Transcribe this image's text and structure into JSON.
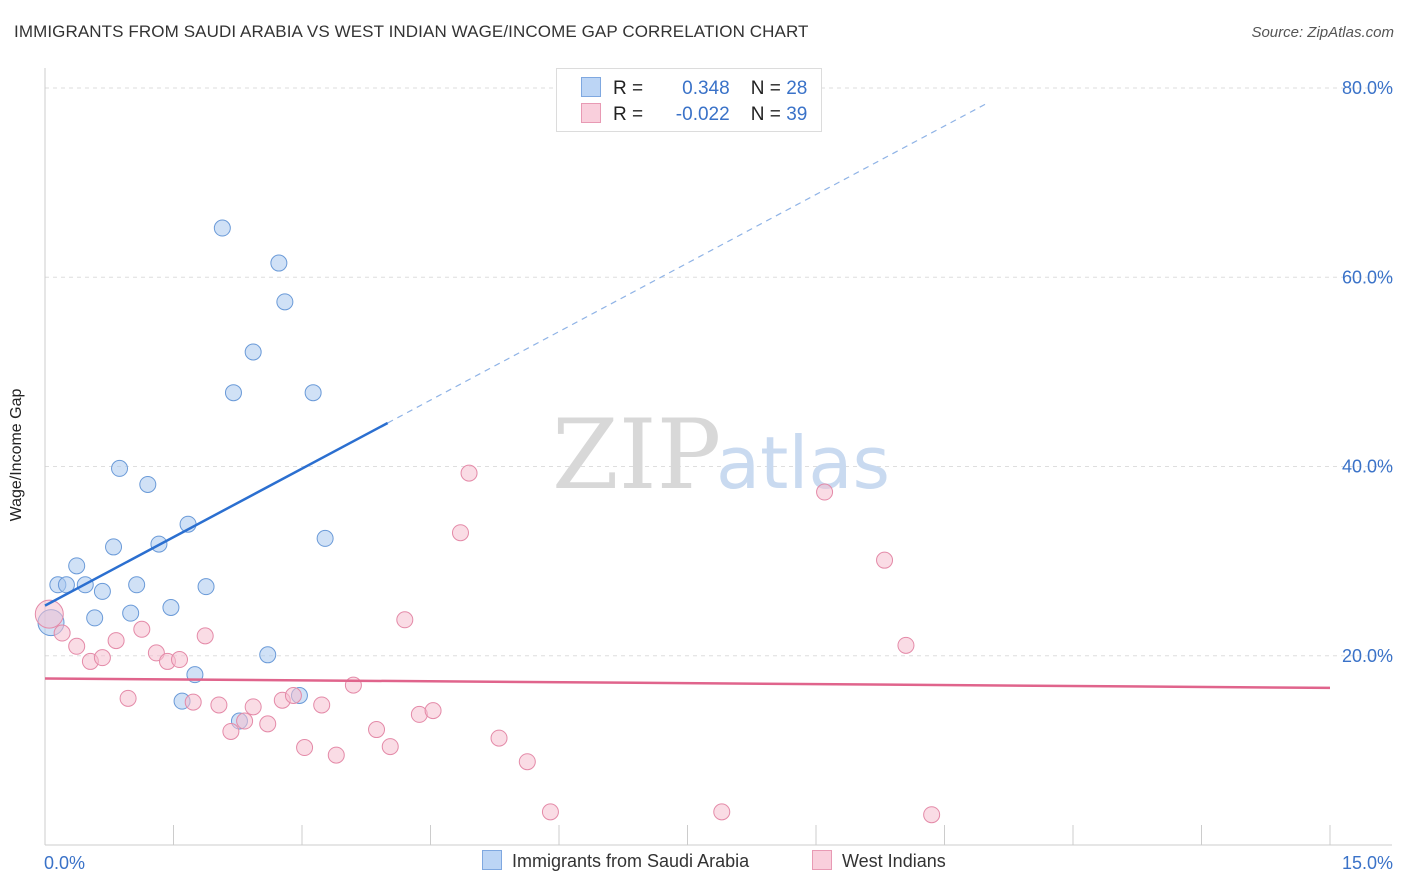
{
  "chart_data": {
    "type": "scatter",
    "title": "IMMIGRANTS FROM SAUDI ARABIA VS WEST INDIAN WAGE/INCOME GAP CORRELATION CHART",
    "source": "Source: ZipAtlas.com",
    "xlabel": "",
    "ylabel": "Wage/Income Gap",
    "xlim": [
      0,
      15
    ],
    "ylim": [
      0,
      80
    ],
    "x_tick_labels": [
      {
        "value": 0,
        "label": "0.0%"
      },
      {
        "value": 15,
        "label": "15.0%"
      }
    ],
    "y_tick_labels": [
      {
        "value": 20,
        "label": "20.0%"
      },
      {
        "value": 40,
        "label": "40.0%"
      },
      {
        "value": 60,
        "label": "60.0%"
      },
      {
        "value": 80,
        "label": "80.0%"
      }
    ],
    "grid": true,
    "legend_position": "top-center",
    "series": [
      {
        "name": "Immigrants from Saudi Arabia",
        "color": "#a9c8ef",
        "stroke": "#6a9ad8",
        "line_color": "#2b6fd0",
        "R": "0.348",
        "N": "28",
        "trend": {
          "x0": 0.0,
          "y0": 25.3,
          "x1": 4.0,
          "y1": 44.6,
          "dash_to_x": 11.0,
          "dash_to_y": 78.4
        },
        "points": [
          [
            0.07,
            23.5
          ],
          [
            0.15,
            27.5
          ],
          [
            0.25,
            27.5
          ],
          [
            0.37,
            29.5
          ],
          [
            0.47,
            27.5
          ],
          [
            0.58,
            24.0
          ],
          [
            0.67,
            26.8
          ],
          [
            0.8,
            31.5
          ],
          [
            0.87,
            39.8
          ],
          [
            1.0,
            24.5
          ],
          [
            1.07,
            27.5
          ],
          [
            1.2,
            38.1
          ],
          [
            1.33,
            31.8
          ],
          [
            1.47,
            25.1
          ],
          [
            1.6,
            15.2
          ],
          [
            1.67,
            33.9
          ],
          [
            1.75,
            18.0
          ],
          [
            1.88,
            27.3
          ],
          [
            2.07,
            65.2
          ],
          [
            2.2,
            47.8
          ],
          [
            2.27,
            13.1
          ],
          [
            2.43,
            52.1
          ],
          [
            2.6,
            20.1
          ],
          [
            2.73,
            61.5
          ],
          [
            2.8,
            57.4
          ],
          [
            2.97,
            15.8
          ],
          [
            3.13,
            47.8
          ],
          [
            3.27,
            32.4
          ]
        ]
      },
      {
        "name": "West Indians",
        "color": "#f6bfd0",
        "stroke": "#e48aa8",
        "line_color": "#e0648c",
        "R": "-0.022",
        "N": "39",
        "trend": {
          "x0": 0.0,
          "y0": 17.6,
          "x1": 15.0,
          "y1": 16.6
        },
        "points": [
          [
            0.05,
            24.4
          ],
          [
            0.2,
            22.4
          ],
          [
            0.37,
            21.0
          ],
          [
            0.53,
            19.4
          ],
          [
            0.67,
            19.8
          ],
          [
            0.83,
            21.6
          ],
          [
            0.97,
            15.5
          ],
          [
            1.13,
            22.8
          ],
          [
            1.3,
            20.3
          ],
          [
            1.43,
            19.4
          ],
          [
            1.57,
            19.6
          ],
          [
            1.73,
            15.1
          ],
          [
            1.87,
            22.1
          ],
          [
            2.03,
            14.8
          ],
          [
            2.17,
            12.0
          ],
          [
            2.33,
            13.1
          ],
          [
            2.43,
            14.6
          ],
          [
            2.6,
            12.8
          ],
          [
            2.77,
            15.3
          ],
          [
            2.9,
            15.8
          ],
          [
            3.03,
            10.3
          ],
          [
            3.23,
            14.8
          ],
          [
            3.4,
            9.5
          ],
          [
            3.6,
            16.9
          ],
          [
            3.87,
            12.2
          ],
          [
            4.03,
            10.4
          ],
          [
            4.2,
            23.8
          ],
          [
            4.37,
            13.8
          ],
          [
            4.53,
            14.2
          ],
          [
            4.85,
            33.0
          ],
          [
            4.95,
            39.3
          ],
          [
            5.3,
            11.3
          ],
          [
            5.63,
            8.8
          ],
          [
            5.9,
            3.5
          ],
          [
            7.9,
            3.5
          ],
          [
            9.1,
            37.3
          ],
          [
            9.8,
            30.1
          ],
          [
            10.05,
            21.1
          ],
          [
            10.35,
            3.2
          ]
        ]
      }
    ]
  },
  "legend_top": [
    {
      "r_label": "R =",
      "r_value": "0.348",
      "n_label": "N =",
      "n_value": "28"
    },
    {
      "r_label": "R =",
      "r_value": "-0.022",
      "n_label": "N =",
      "n_value": "39"
    }
  ],
  "watermark": {
    "zip": "ZIP",
    "atlas": "atlas"
  }
}
